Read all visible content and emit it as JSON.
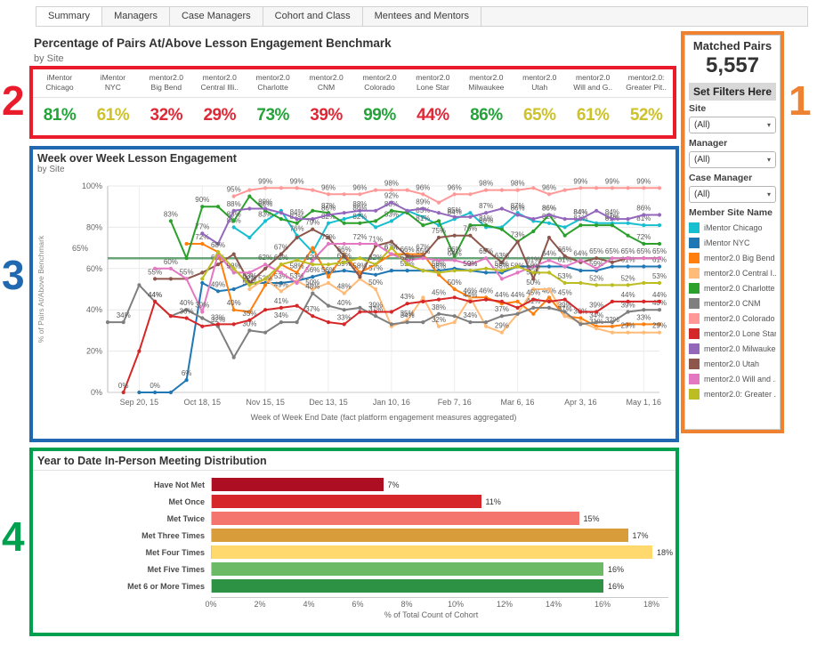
{
  "tabs": [
    {
      "label": "Summary",
      "active": true
    },
    {
      "label": "Managers",
      "active": false
    },
    {
      "label": "Case Managers",
      "active": false
    },
    {
      "label": "Cohort and Class",
      "active": false
    },
    {
      "label": "Mentees and Mentors",
      "active": false
    }
  ],
  "annotations": [
    {
      "label": "1",
      "color_key": "box_orange"
    },
    {
      "label": "2",
      "color_key": "box_red"
    },
    {
      "label": "3",
      "color_key": "box_blue"
    },
    {
      "label": "4",
      "color_key": "box_green"
    }
  ],
  "colors": {
    "good": "#23a438",
    "warn": "#cdc22a",
    "bad": "#e02735",
    "box_red": "#ea1c2c",
    "box_blue": "#2068b0",
    "box_green": "#00a14e",
    "box_orange": "#ee8230",
    "ref_line": "#68a578"
  },
  "benchmark": {
    "title": "Percentage of Pairs At/Above Lesson Engagement Benchmark",
    "subtitle": "by Site",
    "sites": [
      {
        "line1": "iMentor",
        "line2": "Chicago",
        "value": "81%",
        "status": "good"
      },
      {
        "line1": "iMentor",
        "line2": "NYC",
        "value": "61%",
        "status": "warn"
      },
      {
        "line1": "mentor2.0",
        "line2": "Big Bend",
        "value": "32%",
        "status": "bad"
      },
      {
        "line1": "mentor2.0",
        "line2": "Central Illi..",
        "value": "29%",
        "status": "bad"
      },
      {
        "line1": "mentor2.0",
        "line2": "Charlotte",
        "value": "73%",
        "status": "good"
      },
      {
        "line1": "mentor2.0",
        "line2": "CNM",
        "value": "39%",
        "status": "bad"
      },
      {
        "line1": "mentor2.0",
        "line2": "Colorado",
        "value": "99%",
        "status": "good"
      },
      {
        "line1": "mentor2.0",
        "line2": "Lone Star",
        "value": "44%",
        "status": "bad"
      },
      {
        "line1": "mentor2.0",
        "line2": "Milwaukee",
        "value": "86%",
        "status": "good"
      },
      {
        "line1": "mentor2.0",
        "line2": "Utah",
        "value": "65%",
        "status": "warn"
      },
      {
        "line1": "mentor2.0",
        "line2": "Will and G..",
        "value": "61%",
        "status": "warn"
      },
      {
        "line1": "mentor2.0:",
        "line2": "Greater Pit..",
        "value": "52%",
        "status": "warn"
      }
    ]
  },
  "chart_data": [
    {
      "type": "line",
      "title": "Week over Week Lesson Engagement",
      "subtitle": "by Site",
      "xlabel": "Week of Week End Date (fact platform engagement measures aggregated)",
      "ylabel": "% of Pairs At/Above Benchmark",
      "ylim": [
        0,
        100
      ],
      "grid": true,
      "y_ticks": [
        "0%",
        "20%",
        "40%",
        "60%",
        "80%",
        "100%"
      ],
      "n_points": 36,
      "x_tick_indices": [
        2,
        6,
        10,
        14,
        18,
        22,
        26,
        30,
        34
      ],
      "x_tick_labels": [
        "Sep 20, 15",
        "Oct 18, 15",
        "Nov 15, 15",
        "Dec 13, 15",
        "Jan 10, 16",
        "Feb 7, 16",
        "Mar 6, 16",
        "Apr 3, 16",
        "May 1, 16"
      ],
      "reference_line": {
        "value": 65,
        "label": "65%"
      },
      "series": [
        {
          "name": "iMentor Chicago",
          "color": "#17becf",
          "values": [
            null,
            null,
            null,
            null,
            null,
            null,
            null,
            null,
            80,
            75,
            83,
            88,
            76,
            68,
            82,
            84,
            86,
            80,
            83,
            88,
            85,
            81,
            84,
            87,
            80,
            80,
            87,
            83,
            82,
            80,
            84,
            82,
            82,
            82,
            81,
            81
          ]
        },
        {
          "name": "iMentor NYC",
          "color": "#1f77b4",
          "values": [
            null,
            null,
            0,
            0,
            0,
            6,
            53,
            49,
            50,
            53,
            53,
            53,
            54,
            56,
            58,
            59,
            58,
            57,
            59,
            59,
            59,
            59,
            60,
            59,
            58,
            58,
            61,
            61,
            61,
            61,
            59,
            59,
            61,
            61,
            61,
            61
          ]
        },
        {
          "name": "mentor2.0 Big Bend",
          "color": "#ff7f0e",
          "values": [
            null,
            null,
            null,
            null,
            null,
            72,
            72,
            68,
            40,
            39,
            52,
            62,
            58,
            70,
            56,
            67,
            58,
            62,
            67,
            67,
            67,
            57,
            50,
            46,
            46,
            43,
            44,
            38,
            46,
            37,
            36,
            32,
            32,
            33,
            33,
            33
          ]
        },
        {
          "name": "mentor2.0 Central Illinois",
          "color": "#ffbb78",
          "values": [
            null,
            null,
            null,
            null,
            null,
            null,
            null,
            null,
            null,
            50,
            55,
            49,
            54,
            50,
            53,
            48,
            55,
            50,
            32,
            35,
            46,
            32,
            34,
            46,
            32,
            29,
            38,
            50,
            50,
            37,
            34,
            31,
            29,
            29,
            29,
            29
          ]
        },
        {
          "name": "mentor2.0 Charlotte",
          "color": "#2ca02c",
          "values": [
            null,
            null,
            null,
            null,
            83,
            65,
            90,
            90,
            83,
            95,
            88,
            84,
            82,
            88,
            87,
            82,
            82,
            83,
            88,
            87,
            81,
            83,
            66,
            81,
            81,
            79,
            73,
            78,
            86,
            76,
            81,
            81,
            81,
            76,
            72,
            72
          ]
        },
        {
          "name": "mentor2.0 CNM",
          "color": "#7f7f7f",
          "values": [
            34,
            34,
            52,
            44,
            37,
            40,
            36,
            32,
            17,
            30,
            29,
            34,
            34,
            48,
            42,
            40,
            41,
            37,
            33,
            34,
            34,
            38,
            37,
            34,
            34,
            37,
            38,
            41,
            41,
            39,
            33,
            34,
            34,
            39,
            40,
            40
          ]
        },
        {
          "name": "mentor2.0 Colorado",
          "color": "#ff9896",
          "values": [
            null,
            null,
            null,
            null,
            null,
            null,
            null,
            null,
            95,
            98,
            99,
            99,
            99,
            98,
            96,
            96,
            96,
            98,
            98,
            98,
            96,
            92,
            96,
            96,
            98,
            98,
            98,
            99,
            96,
            98,
            99,
            99,
            99,
            99,
            99,
            99
          ]
        },
        {
          "name": "mentor2.0 Lone Star",
          "color": "#d62728",
          "values": [
            null,
            0,
            20,
            44,
            37,
            36,
            32,
            33,
            33,
            35,
            40,
            41,
            42,
            37,
            34,
            33,
            39,
            39,
            39,
            43,
            44,
            45,
            46,
            44,
            45,
            44,
            41,
            45,
            44,
            45,
            39,
            39,
            44,
            44,
            44,
            44
          ]
        },
        {
          "name": "mentor2.0 Milwaukee",
          "color": "#9467bd",
          "values": [
            null,
            null,
            null,
            null,
            null,
            null,
            77,
            72,
            88,
            89,
            89,
            87,
            84,
            84,
            86,
            87,
            88,
            88,
            92,
            88,
            89,
            87,
            85,
            85,
            87,
            89,
            86,
            84,
            86,
            84,
            84,
            88,
            84,
            84,
            86,
            86
          ]
        },
        {
          "name": "mentor2.0 Utah",
          "color": "#8c564b",
          "values": [
            null,
            null,
            null,
            55,
            55,
            55,
            58,
            62,
            67,
            53,
            60,
            67,
            75,
            79,
            75,
            66,
            56,
            71,
            73,
            66,
            66,
            75,
            76,
            76,
            69,
            63,
            73,
            55,
            75,
            66,
            63,
            65,
            63,
            65,
            65,
            65
          ]
        },
        {
          "name": "mentor2.0 Will and Grundy",
          "color": "#e377c2",
          "values": [
            null,
            null,
            null,
            60,
            60,
            55,
            39,
            67,
            58,
            58,
            62,
            58,
            53,
            64,
            72,
            72,
            72,
            72,
            67,
            64,
            65,
            64,
            64,
            62,
            65,
            55,
            58,
            61,
            64,
            61,
            64,
            60,
            65,
            65,
            65,
            65
          ]
        },
        {
          "name": "mentor2.0: Greater Pittsburgh",
          "color": "#bcbd22",
          "values": [
            null,
            null,
            null,
            null,
            null,
            null,
            55,
            68,
            60,
            52,
            55,
            62,
            64,
            62,
            62,
            63,
            65,
            62,
            70,
            62,
            59,
            58,
            59,
            59,
            60,
            59,
            61,
            58,
            58,
            53,
            53,
            52,
            52,
            52,
            53,
            53
          ]
        }
      ]
    },
    {
      "type": "bar",
      "orientation": "horizontal",
      "title": "Year to Date In-Person Meeting Distribution",
      "categories": [
        "Have Not Met",
        "Met Once",
        "Met Twice",
        "Met Three Times",
        "Met Four Times",
        "Met Five Times",
        "Met 6 or More Times"
      ],
      "values": [
        7,
        11,
        15,
        17,
        18,
        16,
        16
      ],
      "value_labels": [
        "7%",
        "11%",
        "15%",
        "17%",
        "18%",
        "16%",
        "16%"
      ],
      "bar_colors": [
        "#ae0e22",
        "#d6262a",
        "#f4756d",
        "#d89d3a",
        "#ffd96e",
        "#6cba66",
        "#2e9245"
      ],
      "x_ticks": [
        "0%",
        "2%",
        "4%",
        "6%",
        "8%",
        "10%",
        "12%",
        "14%",
        "16%",
        "18%"
      ],
      "xlim": [
        0,
        19
      ],
      "xlabel": "% of Total Count of Cohort"
    }
  ],
  "sidebar": {
    "matched_pairs_label": "Matched Pairs",
    "matched_pairs_value": "5,557",
    "filters_header": "Set Filters Here",
    "filters": [
      {
        "label": "Site",
        "value": "(All)"
      },
      {
        "label": "Manager",
        "value": "(All)"
      },
      {
        "label": "Case Manager",
        "value": "(All)"
      }
    ],
    "legend_title": "Member Site Name",
    "legend": [
      {
        "label": "iMentor Chicago",
        "color": "#17becf"
      },
      {
        "label": "iMentor NYC",
        "color": "#1f77b4"
      },
      {
        "label": "mentor2.0 Big Bend",
        "color": "#ff7f0e"
      },
      {
        "label": "mentor2.0 Central I...",
        "color": "#ffbb78"
      },
      {
        "label": "mentor2.0 Charlotte",
        "color": "#2ca02c"
      },
      {
        "label": "mentor2.0 CNM",
        "color": "#7f7f7f"
      },
      {
        "label": "mentor2.0 Colorado",
        "color": "#ff9896"
      },
      {
        "label": "mentor2.0 Lone Star",
        "color": "#d62728"
      },
      {
        "label": "mentor2.0 Milwaukee",
        "color": "#9467bd"
      },
      {
        "label": "mentor2.0 Utah",
        "color": "#8c564b"
      },
      {
        "label": "mentor2.0 Will and ...",
        "color": "#e377c2"
      },
      {
        "label": "mentor2.0: Greater ...",
        "color": "#bcbd22"
      }
    ]
  }
}
